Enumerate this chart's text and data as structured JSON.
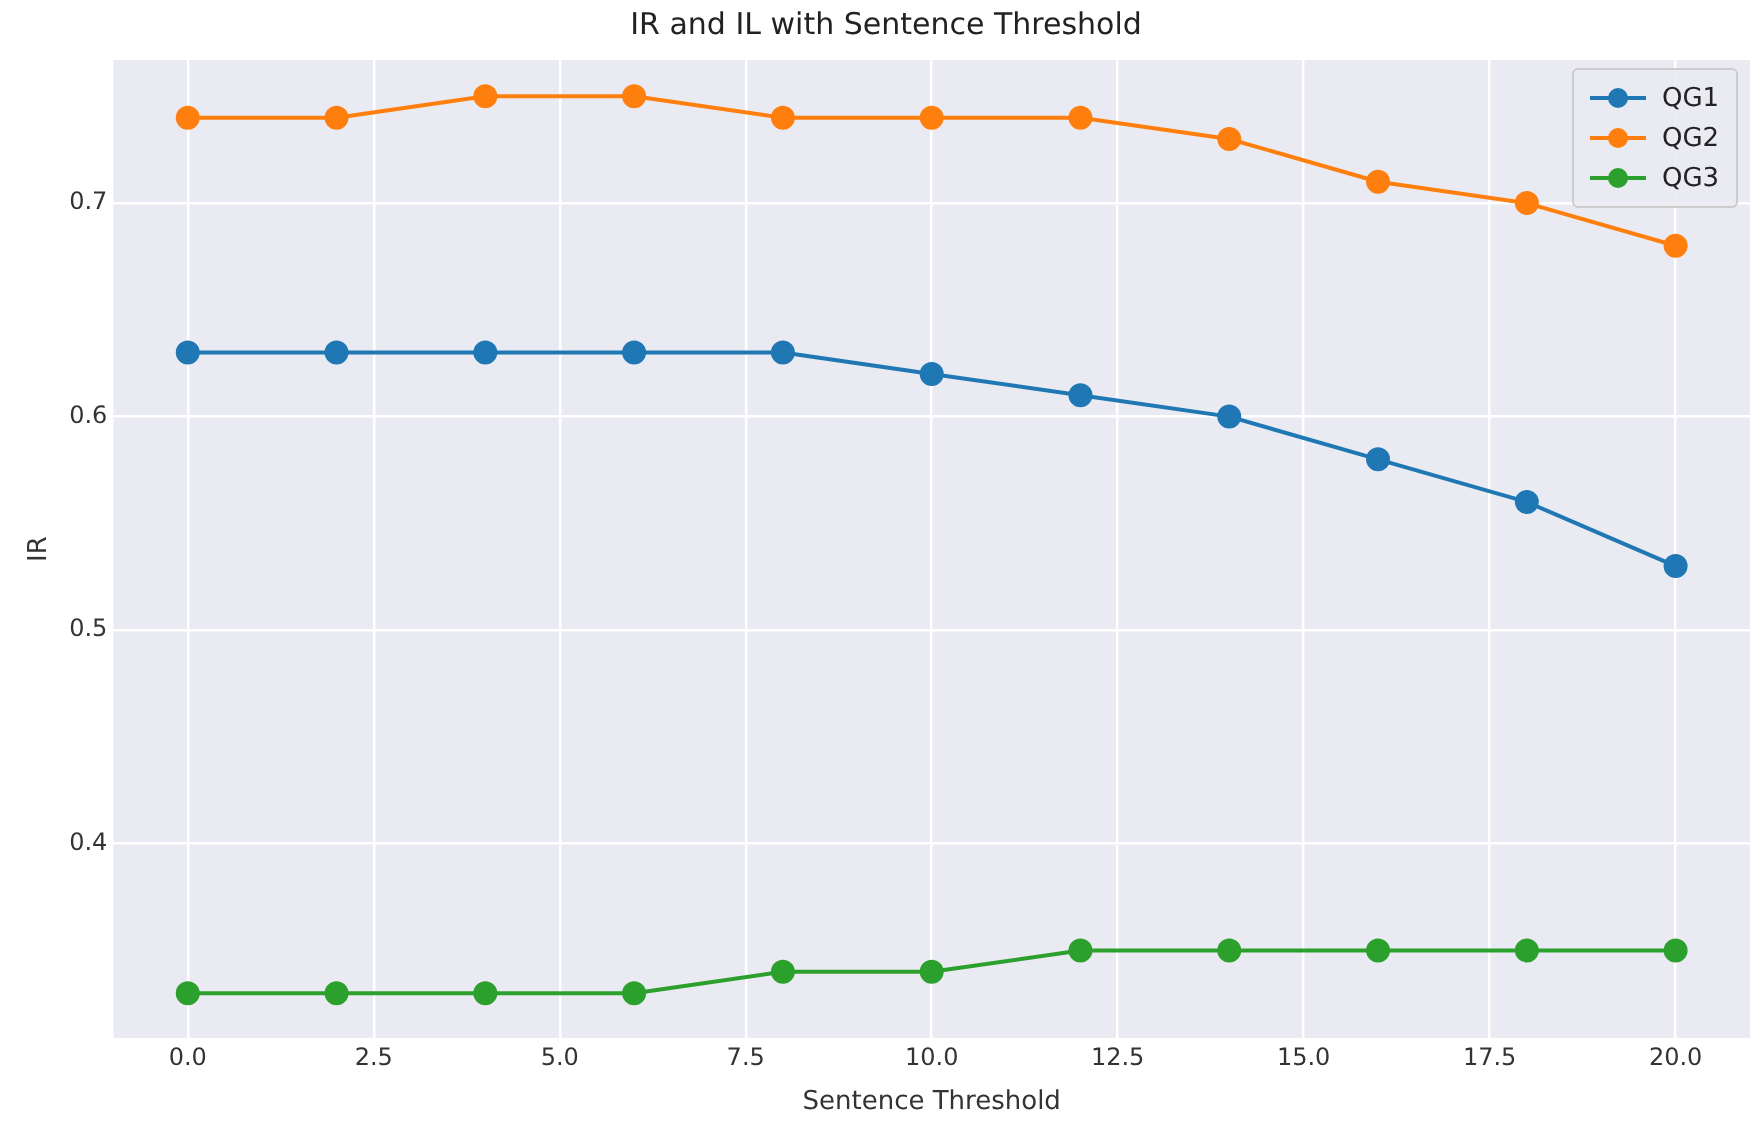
{
  "chart_data": {
    "type": "line",
    "title": "IR and IL with Sentence Threshold",
    "xlabel": "Sentence Threshold",
    "ylabel": "IR",
    "x": [
      0,
      2,
      4,
      6,
      8,
      10,
      12,
      14,
      16,
      18,
      20
    ],
    "series": [
      {
        "name": "QG1",
        "color": "#1f77b4",
        "values": [
          0.63,
          0.63,
          0.63,
          0.63,
          0.63,
          0.62,
          0.61,
          0.6,
          0.58,
          0.56,
          0.53
        ]
      },
      {
        "name": "QG2",
        "color": "#ff7f0e",
        "values": [
          0.74,
          0.74,
          0.75,
          0.75,
          0.74,
          0.74,
          0.74,
          0.73,
          0.71,
          0.7,
          0.68
        ]
      },
      {
        "name": "QG3",
        "color": "#2ca02c",
        "values": [
          0.33,
          0.33,
          0.33,
          0.33,
          0.34,
          0.34,
          0.35,
          0.35,
          0.35,
          0.35,
          0.35
        ]
      }
    ],
    "xlim": [
      -1,
      21
    ],
    "xticks": [
      {
        "value": 0,
        "label": "0.0"
      },
      {
        "value": 2.5,
        "label": "2.5"
      },
      {
        "value": 5,
        "label": "5.0"
      },
      {
        "value": 7.5,
        "label": "7.5"
      },
      {
        "value": 10,
        "label": "10.0"
      },
      {
        "value": 12.5,
        "label": "12.5"
      },
      {
        "value": 15,
        "label": "15.0"
      },
      {
        "value": 17.5,
        "label": "17.5"
      },
      {
        "value": 20,
        "label": "20.0"
      }
    ],
    "ylim": [
      0.309,
      0.767
    ],
    "yticks": [
      0.4,
      0.5,
      0.6,
      0.7
    ],
    "grid": true,
    "legend": "top right",
    "marker": "circle",
    "line_style": "solid"
  }
}
